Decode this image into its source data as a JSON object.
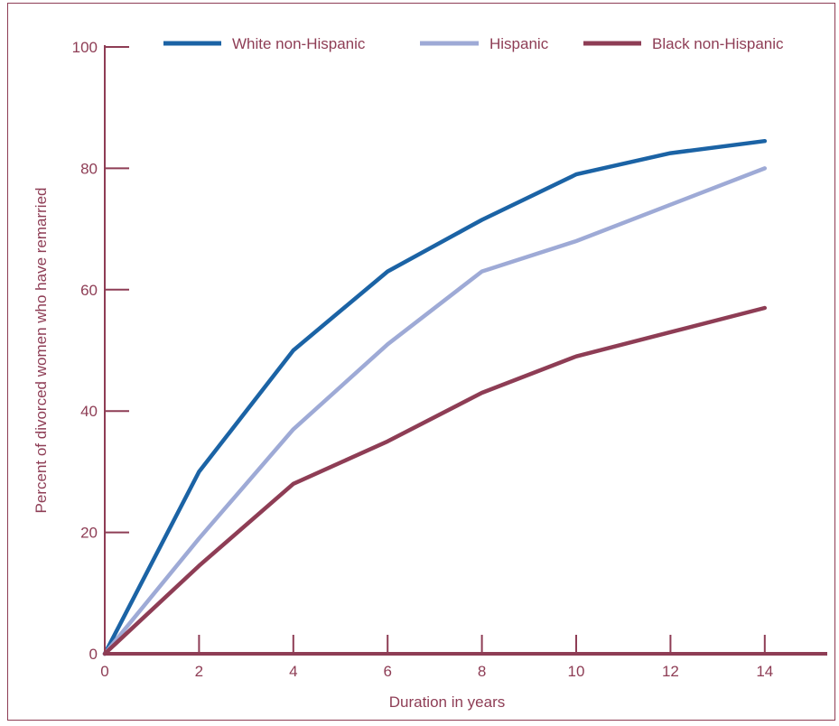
{
  "chart_data": {
    "type": "line",
    "title": "",
    "xlabel": "Duration in years",
    "ylabel": "Percent of divorced women who have remarried",
    "x": [
      0,
      2,
      4,
      6,
      8,
      10,
      12,
      14
    ],
    "xlim": [
      0,
      15
    ],
    "ylim": [
      0,
      100
    ],
    "xticks": [
      0,
      2,
      4,
      6,
      8,
      10,
      12,
      14
    ],
    "yticks": [
      0,
      20,
      40,
      60,
      80,
      100
    ],
    "grid": false,
    "legend_position": "top",
    "series": [
      {
        "name": "White non-Hispanic",
        "color": "#1b63a5",
        "values": [
          0,
          30,
          50,
          63,
          71.5,
          79,
          82.5,
          84.5
        ]
      },
      {
        "name": "Hispanic",
        "color": "#9eaad6",
        "values": [
          0,
          19,
          37,
          51,
          63,
          68,
          74,
          80
        ]
      },
      {
        "name": "Black non-Hispanic",
        "color": "#8e3d55",
        "values": [
          0,
          14.5,
          28,
          35,
          43,
          49,
          53,
          57
        ]
      }
    ],
    "axis_color": "#8e3d55"
  }
}
